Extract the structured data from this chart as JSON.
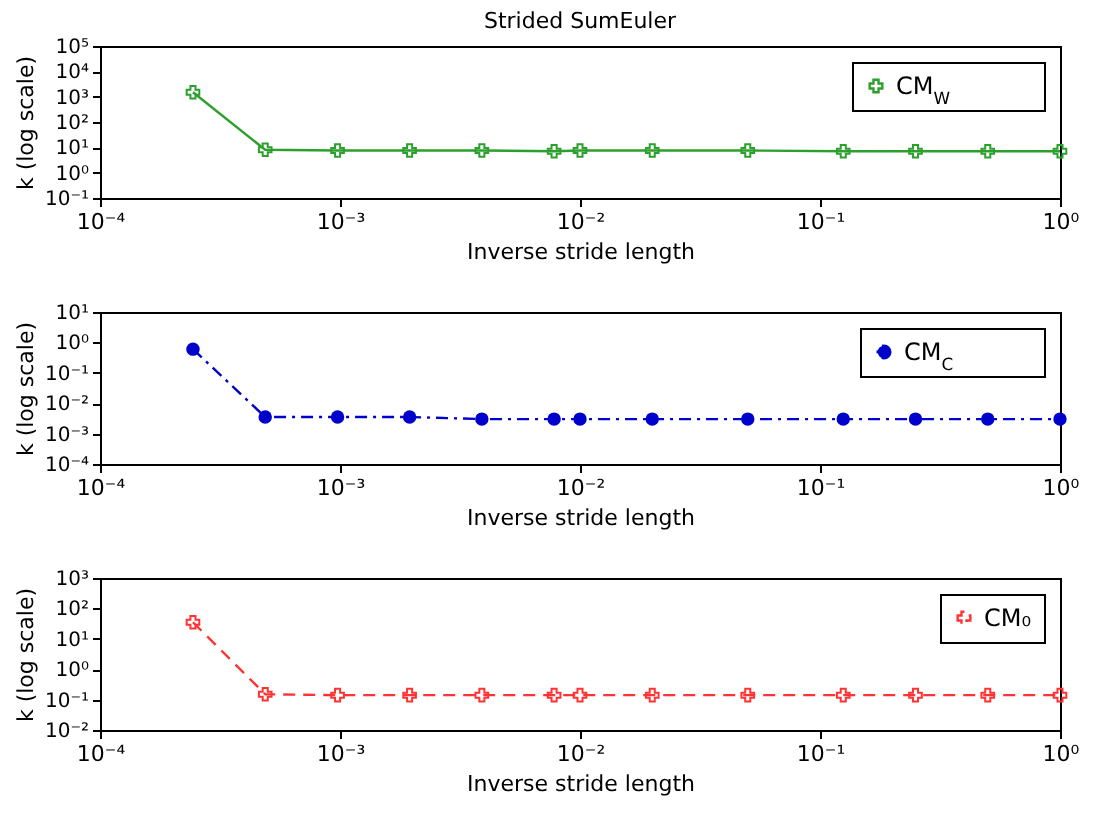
{
  "chart_data": [
    {
      "type": "line",
      "title": "Strided SumEuler",
      "xlabel": "Inverse stride length",
      "ylabel": "k (log scale)",
      "log": "xy",
      "grid": false,
      "legend": "top right",
      "marker": "cross",
      "line_style": "solid",
      "x": [
        0.000244,
        0.000488,
        0.000977,
        0.00195,
        0.0039,
        0.0078,
        0.01,
        0.02,
        0.05,
        0.125,
        0.25,
        0.5,
        1
      ],
      "series": [
        {
          "name": "CM$_{W}$",
          "color": "#2ca02c",
          "values": [
            1500,
            8,
            7.5,
            7.5,
            7.5,
            7,
            7.5,
            7.5,
            7.5,
            7,
            7,
            7,
            7
          ]
        }
      ],
      "xlim": [
        0.0001,
        1
      ],
      "xticks": [
        {
          "value": 0.0001,
          "label": "10⁻⁴"
        },
        {
          "value": 0.001,
          "label": "10⁻³"
        },
        {
          "value": 0.01,
          "label": "10⁻²"
        },
        {
          "value": 0.1,
          "label": "10⁻¹"
        },
        {
          "value": 1,
          "label": "10⁰"
        }
      ],
      "ylim": [
        0.1,
        100000
      ],
      "yticks": [
        {
          "value": 0.1,
          "label": "10⁻¹"
        },
        {
          "value": 1,
          "label": "10⁰"
        },
        {
          "value": 10,
          "label": "10¹"
        },
        {
          "value": 100,
          "label": "10²"
        },
        {
          "value": 1000,
          "label": "10³"
        },
        {
          "value": 10000,
          "label": "10⁴"
        },
        {
          "value": 100000,
          "label": "10⁵"
        }
      ]
    },
    {
      "type": "line",
      "xlabel": "Inverse stride length",
      "ylabel": "k (log scale)",
      "log": "xy",
      "grid": false,
      "legend": "top right",
      "marker": "circle",
      "line_style": "dotted",
      "x": [
        0.000244,
        0.000488,
        0.000977,
        0.00195,
        0.0039,
        0.0078,
        0.01,
        0.02,
        0.05,
        0.125,
        0.25,
        0.5,
        1
      ],
      "series": [
        {
          "name": "CM$_{C}$",
          "color": "#0000cc",
          "values": [
            0.6,
            0.0035,
            0.0035,
            0.0035,
            0.003,
            0.003,
            0.003,
            0.003,
            0.003,
            0.003,
            0.003,
            0.003,
            0.003
          ]
        }
      ],
      "xlim": [
        0.0001,
        1
      ],
      "xticks": [
        {
          "value": 0.0001,
          "label": "10⁻⁴"
        },
        {
          "value": 0.001,
          "label": "10⁻³"
        },
        {
          "value": 0.01,
          "label": "10⁻²"
        },
        {
          "value": 0.1,
          "label": "10⁻¹"
        },
        {
          "value": 1,
          "label": "10⁰"
        }
      ],
      "ylim": [
        0.0001,
        10
      ],
      "yticks": [
        {
          "value": 0.0001,
          "label": "10⁻⁴"
        },
        {
          "value": 0.001,
          "label": "10⁻³"
        },
        {
          "value": 0.01,
          "label": "10⁻²"
        },
        {
          "value": 0.1,
          "label": "10⁻¹"
        },
        {
          "value": 1,
          "label": "10⁰"
        },
        {
          "value": 10,
          "label": "10¹"
        }
      ]
    },
    {
      "type": "line",
      "xlabel": "Inverse stride length",
      "ylabel": "k (log scale)",
      "log": "xy",
      "grid": false,
      "legend": "top right",
      "marker": "cross",
      "line_style": "dashed",
      "x": [
        0.000244,
        0.000488,
        0.000977,
        0.00195,
        0.0039,
        0.0078,
        0.01,
        0.02,
        0.05,
        0.125,
        0.25,
        0.5,
        1
      ],
      "series": [
        {
          "name": "CM₀",
          "color": "#ff3333",
          "values": [
            35,
            0.15,
            0.14,
            0.14,
            0.14,
            0.14,
            0.14,
            0.14,
            0.14,
            0.14,
            0.14,
            0.14,
            0.14
          ]
        }
      ],
      "xlim": [
        0.0001,
        1
      ],
      "xticks": [
        {
          "value": 0.0001,
          "label": "10⁻⁴"
        },
        {
          "value": 0.001,
          "label": "10⁻³"
        },
        {
          "value": 0.01,
          "label": "10⁻²"
        },
        {
          "value": 0.1,
          "label": "10⁻¹"
        },
        {
          "value": 1,
          "label": "10⁰"
        }
      ],
      "ylim": [
        0.01,
        1000
      ],
      "yticks": [
        {
          "value": 0.01,
          "label": "10⁻²"
        },
        {
          "value": 0.1,
          "label": "10⁻¹"
        },
        {
          "value": 1,
          "label": "10⁰"
        },
        {
          "value": 10,
          "label": "10¹"
        },
        {
          "value": 100,
          "label": "10²"
        },
        {
          "value": 1000,
          "label": "10³"
        }
      ]
    }
  ]
}
